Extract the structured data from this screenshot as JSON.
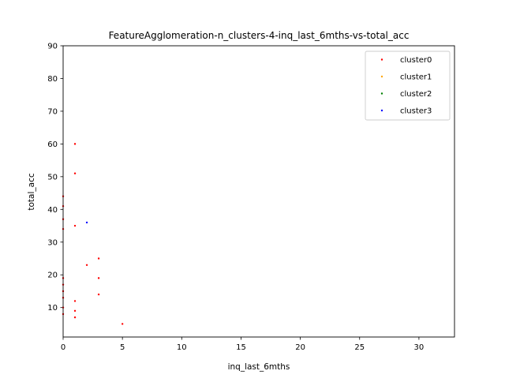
{
  "chart_data": {
    "type": "scatter",
    "title": "FeatureAgglomeration-n_clusters-4-inq_last_6mths-vs-total_acc",
    "xlabel": "inq_last_6mths",
    "ylabel": "total_acc",
    "xlim": [
      0,
      33
    ],
    "ylim": [
      1,
      90
    ],
    "x_ticks": [
      0,
      5,
      10,
      15,
      20,
      25,
      30
    ],
    "y_ticks": [
      10,
      20,
      30,
      40,
      50,
      60,
      70,
      80,
      90
    ],
    "grid": false,
    "legend_position": "top-right",
    "series": [
      {
        "name": "cluster0",
        "color": "#ff0000",
        "points": [
          {
            "x": 1,
            "y": 60
          },
          {
            "x": 1,
            "y": 51
          },
          {
            "x": 1,
            "y": 35
          },
          {
            "x": 2,
            "y": 23
          },
          {
            "x": 3,
            "y": 25
          },
          {
            "x": 3,
            "y": 19
          },
          {
            "x": 3,
            "y": 14
          },
          {
            "x": 1,
            "y": 12
          },
          {
            "x": 1,
            "y": 9
          },
          {
            "x": 1,
            "y": 7
          },
          {
            "x": 5,
            "y": 5
          },
          {
            "x": 0,
            "y": 44
          },
          {
            "x": 0,
            "y": 41
          },
          {
            "x": 0,
            "y": 37
          },
          {
            "x": 0,
            "y": 34
          },
          {
            "x": 0,
            "y": 19
          },
          {
            "x": 0,
            "y": 17
          },
          {
            "x": 0,
            "y": 15
          },
          {
            "x": 0,
            "y": 13
          },
          {
            "x": 0,
            "y": 10
          },
          {
            "x": 0,
            "y": 8
          }
        ]
      },
      {
        "name": "cluster1",
        "color": "#ffa500",
        "points": []
      },
      {
        "name": "cluster2",
        "color": "#008000",
        "points": []
      },
      {
        "name": "cluster3",
        "color": "#0000ff",
        "points": [
          {
            "x": 2,
            "y": 36
          }
        ]
      }
    ]
  }
}
